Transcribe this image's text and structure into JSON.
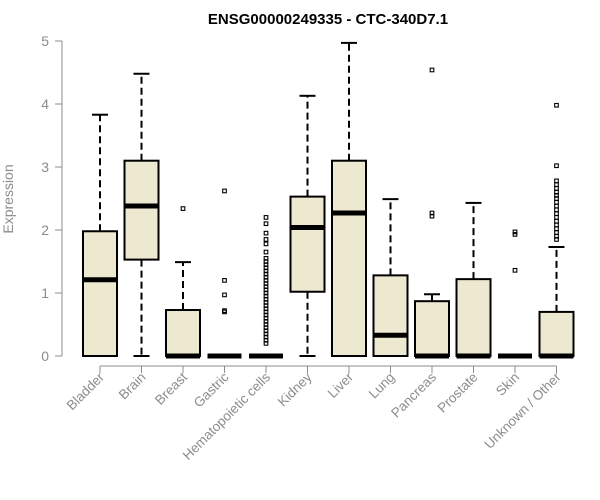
{
  "chart_data": {
    "type": "box",
    "title": "ENSG00000249335 - CTC-340D7.1",
    "xlabel": "",
    "ylabel": "Expression",
    "ylim": [
      0,
      5
    ],
    "yticks": [
      "0",
      "1",
      "2",
      "3",
      "4",
      "5"
    ],
    "grid": false,
    "legend": "none",
    "colors": {
      "box_fill": "#ede8d0",
      "box_stroke": "#000000",
      "axis": "#8c8c8c",
      "text": "#8c8c8c"
    },
    "categories": [
      "Bladder",
      "Brain",
      "Breast",
      "Gastric",
      "Hematopoietic cells",
      "Kidney",
      "Liver",
      "Lung",
      "Pancreas",
      "Prostate",
      "Skin",
      "Unknown / Other"
    ],
    "boxes": [
      {
        "whisker_low": 0,
        "q1": 0,
        "median": 1.21,
        "q3": 1.98,
        "whisker_high": 3.83,
        "outliers": []
      },
      {
        "whisker_low": 0,
        "q1": 1.53,
        "median": 2.38,
        "q3": 3.1,
        "whisker_high": 4.48,
        "outliers": []
      },
      {
        "whisker_low": 0,
        "q1": 0,
        "median": 0,
        "q3": 0.73,
        "whisker_high": 1.49,
        "outliers": [
          2.34
        ]
      },
      {
        "whisker_low": 0,
        "q1": 0,
        "median": 0,
        "q3": 0,
        "whisker_high": 0,
        "outliers": [
          2.62,
          1.2,
          0.97,
          0.72,
          0.7
        ]
      },
      {
        "whisker_low": 0,
        "q1": 0,
        "median": 0,
        "q3": 0,
        "whisker_high": 0,
        "outliers": [
          2.2,
          2.1,
          1.95,
          1.85,
          1.78,
          1.65,
          1.55,
          1.5,
          1.45,
          1.4,
          1.35,
          1.3,
          1.25,
          1.2,
          1.15,
          1.1,
          1.05,
          1.0,
          0.95,
          0.9,
          0.85,
          0.8,
          0.75,
          0.7,
          0.65,
          0.6,
          0.55,
          0.5,
          0.45,
          0.4,
          0.35,
          0.3,
          0.25,
          0.2
        ]
      },
      {
        "whisker_low": 0,
        "q1": 1.02,
        "median": 2.04,
        "q3": 2.53,
        "whisker_high": 4.13,
        "outliers": []
      },
      {
        "whisker_low": 0,
        "q1": 0,
        "median": 2.27,
        "q3": 3.1,
        "whisker_high": 4.97,
        "outliers": []
      },
      {
        "whisker_low": 0,
        "q1": 0,
        "median": 0.33,
        "q3": 1.28,
        "whisker_high": 2.49,
        "outliers": []
      },
      {
        "whisker_low": 0,
        "q1": 0,
        "median": 0,
        "q3": 0.87,
        "whisker_high": 0.98,
        "outliers": [
          4.54,
          2.27,
          2.22
        ]
      },
      {
        "whisker_low": 0,
        "q1": 0,
        "median": 0,
        "q3": 1.22,
        "whisker_high": 2.43,
        "outliers": []
      },
      {
        "whisker_low": 0,
        "q1": 0,
        "median": 0,
        "q3": 0,
        "whisker_high": 0,
        "outliers": [
          1.97,
          1.93,
          1.36
        ]
      },
      {
        "whisker_low": 0,
        "q1": 0,
        "median": 0,
        "q3": 0.7,
        "whisker_high": 1.73,
        "outliers": [
          3.98,
          3.02,
          2.78,
          2.72,
          2.66,
          2.6,
          2.55,
          2.5,
          2.44,
          2.38,
          2.32,
          2.26,
          2.2,
          2.14,
          2.08,
          2.02,
          1.96,
          1.9,
          1.85
        ]
      }
    ]
  }
}
